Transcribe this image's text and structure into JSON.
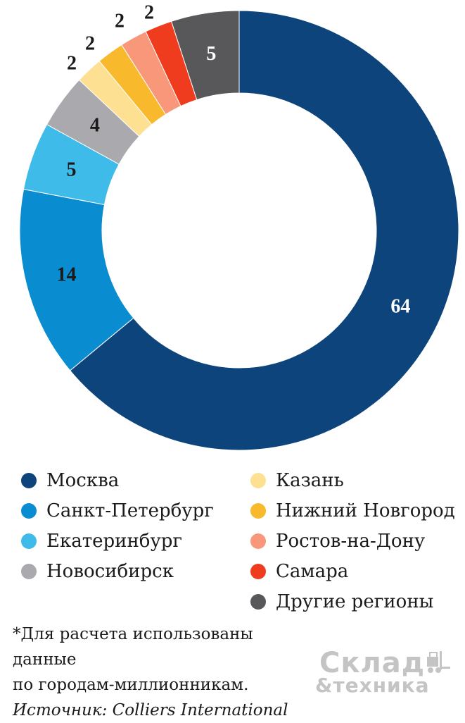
{
  "chart_data": {
    "type": "pie",
    "donut": true,
    "categories": [
      "Москва",
      "Санкт-Петербург",
      "Екатеринбург",
      "Новосибирск",
      "Казань",
      "Нижний Новгород",
      "Ростов-на-Дону",
      "Самара",
      "Другие регионы"
    ],
    "values": [
      64,
      14,
      5,
      4,
      2,
      2,
      2,
      2,
      5
    ],
    "colors": [
      "#0d447c",
      "#0a8cd0",
      "#3ebbe8",
      "#a9a9ae",
      "#fde092",
      "#f9b92c",
      "#f9977b",
      "#ef3c1f",
      "#58585a"
    ],
    "label_colors": [
      "#ffffff",
      "#1a1a1a",
      "#1a1a1a",
      "#1a1a1a",
      "#1a1a1a",
      "#1a1a1a",
      "#1a1a1a",
      "#1a1a1a",
      "#ffffff"
    ],
    "title": "",
    "legend_position": "bottom"
  },
  "footnote": {
    "line1": "*Для расчета использованы данные",
    "line2": "по городам-миллионникам.",
    "source": "Источник: Colliers International"
  },
  "logo": {
    "line1": "Склад",
    "line2": "&техника",
    "icon": "forklift-icon"
  }
}
